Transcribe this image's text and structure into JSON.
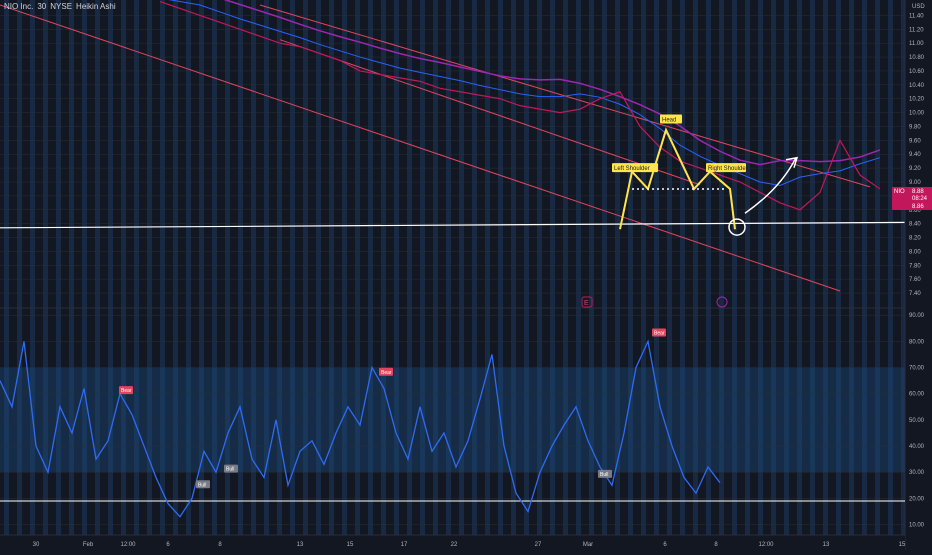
{
  "header": {
    "symbol_title": "NIO Inc.",
    "interval": "30",
    "exchange": "NYSE",
    "chart_style": "Heikin Ashi",
    "currency": "USD"
  },
  "price_labels": {
    "ticker": "NIO",
    "last_price": "8.88",
    "countdown": "08:24",
    "second_price": "8.86"
  },
  "markers": {
    "earnings_icon": "E",
    "split_icon": "lightning-icon"
  },
  "colors": {
    "background": "#131722",
    "session_band": "#1e3a5f",
    "price_line": "#c2185b",
    "channel": "#e0455e",
    "support": "#ffffff",
    "pattern": "#ffe54a",
    "ma_purple": "#9c27b0",
    "ma_blue": "#2962ff",
    "oscillator": "#2e6bf5"
  },
  "chart_data": [
    {
      "type": "line",
      "title": "NIO Inc., 30, NYSE, Heikin Ashi",
      "y_axis_ticks": [
        "11.40",
        "11.20",
        "11.00",
        "10.80",
        "10.60",
        "10.40",
        "10.20",
        "10.00",
        "9.80",
        "9.60",
        "9.40",
        "9.20",
        "9.00",
        "8.80",
        "8.60",
        "8.40",
        "8.20",
        "8.00",
        "7.80",
        "7.60",
        "7.40"
      ],
      "x_axis_ticks": [
        "30",
        "Feb",
        "12:00",
        "6",
        "8",
        "13",
        "15",
        "17",
        "22",
        "27",
        "Mar",
        "6",
        "8",
        "12:00",
        "13",
        "15"
      ],
      "ylim": [
        7.3,
        11.55
      ],
      "x": [
        0,
        20,
        40,
        60,
        80,
        100,
        120,
        140,
        160,
        180,
        200,
        220,
        240,
        260,
        280,
        300,
        320,
        340,
        360,
        380,
        400,
        420,
        440,
        460,
        480,
        500,
        520,
        540,
        560,
        580,
        600,
        620,
        640,
        660,
        680,
        700,
        720
      ],
      "series": [
        {
          "name": "",
          "values": [
            11.6,
            11.5,
            11.4,
            11.3,
            11.2,
            11.1,
            11.0,
            10.95,
            10.85,
            10.75,
            10.6,
            10.55,
            10.5,
            10.45,
            10.35,
            10.3,
            10.25,
            10.2,
            10.1,
            10.05,
            10.0,
            10.05,
            10.2,
            10.3,
            9.8,
            9.5,
            9.3,
            9.2,
            9.1,
            9.0,
            8.85,
            8.7,
            8.6,
            8.85,
            9.6,
            9.1,
            8.9
          ]
        }
      ],
      "channel_upper": {
        "x": [
          260,
          870
        ],
        "y": [
          11.55,
          8.93
        ]
      },
      "channel_lower_outer": {
        "x": [
          0,
          840
        ],
        "y": [
          11.55,
          7.43
        ]
      },
      "channel_lower_inner": {
        "x": [
          280,
          700
        ],
        "y": [
          11.05,
          8.96
        ]
      },
      "support_line": {
        "x": [
          0,
          932
        ],
        "y": [
          8.34,
          8.42
        ]
      },
      "pattern_labels": [
        "Left Shoulder",
        "Head",
        "Right Shoulder"
      ],
      "neckline_y": 8.9,
      "grid": true
    },
    {
      "type": "line",
      "y_axis_ticks": [
        "90.00",
        "80.00",
        "70.00",
        "60.00",
        "50.00",
        "40.00",
        "30.00",
        "20.00",
        "10.00"
      ],
      "ylim": [
        6,
        92
      ],
      "upper_band": 70,
      "lower_band": 30,
      "baseline": 19,
      "labels": [
        {
          "text": "Bear",
          "x": 125,
          "y": 61
        },
        {
          "text": "Bull",
          "x": 202,
          "y": 25
        },
        {
          "text": "Bull",
          "x": 230,
          "y": 31
        },
        {
          "text": "Bear",
          "x": 385,
          "y": 68
        },
        {
          "text": "Bull",
          "x": 604,
          "y": 29
        },
        {
          "text": "Bear",
          "x": 658,
          "y": 83
        }
      ],
      "x": [
        0,
        12,
        24,
        36,
        48,
        60,
        72,
        84,
        96,
        108,
        120,
        132,
        144,
        156,
        168,
        180,
        192,
        204,
        216,
        228,
        240,
        252,
        264,
        276,
        288,
        300,
        312,
        324,
        336,
        348,
        360,
        372,
        384,
        396,
        408,
        420,
        432,
        444,
        456,
        468,
        480,
        492,
        504,
        516,
        528,
        540,
        552,
        564,
        576,
        588,
        600,
        612,
        624,
        636,
        648,
        660,
        672,
        684,
        696,
        708,
        720
      ],
      "series": [
        {
          "name": "",
          "values": [
            65,
            55,
            80,
            40,
            30,
            55,
            45,
            62,
            35,
            42,
            60,
            52,
            40,
            28,
            18,
            13,
            20,
            38,
            30,
            45,
            55,
            35,
            28,
            50,
            25,
            38,
            42,
            33,
            45,
            55,
            48,
            70,
            62,
            45,
            35,
            55,
            38,
            45,
            32,
            42,
            58,
            75,
            40,
            22,
            15,
            30,
            40,
            48,
            55,
            42,
            32,
            25,
            45,
            70,
            80,
            55,
            40,
            28,
            22,
            32,
            26
          ]
        }
      ]
    }
  ]
}
